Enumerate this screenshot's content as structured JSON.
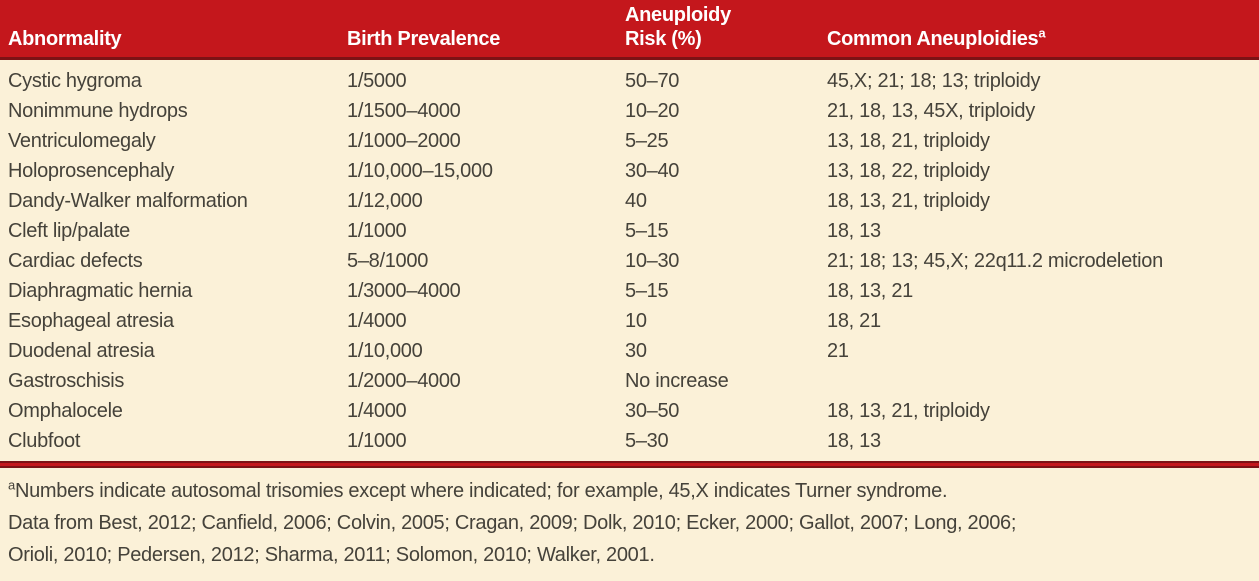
{
  "colors": {
    "header_bg": "#c4171c",
    "rule_dark": "#7d1215",
    "body_bg": "#fbf1d8",
    "body_text": "#45423a",
    "header_text": "#ffffff"
  },
  "header": {
    "col1": "Abnormality",
    "col2": "Birth Prevalence",
    "col3_line1": "Aneuploidy",
    "col3_line2": "Risk (%)",
    "col4": "Common Aneuploidies",
    "col4_superscript": "a"
  },
  "rows": [
    {
      "abnormality": "Cystic hygroma",
      "birth_prevalence": "1/5000",
      "aneuploidy_risk": "50–70",
      "common_aneuploidies": "45,X; 21; 18; 13; triploidy"
    },
    {
      "abnormality": "Nonimmune hydrops",
      "birth_prevalence": "1/1500–4000",
      "aneuploidy_risk": "10–20",
      "common_aneuploidies": "21, 18, 13, 45X, triploidy"
    },
    {
      "abnormality": "Ventriculomegaly",
      "birth_prevalence": "1/1000–2000",
      "aneuploidy_risk": "5–25",
      "common_aneuploidies": "13, 18, 21, triploidy"
    },
    {
      "abnormality": "Holoprosencephaly",
      "birth_prevalence": "1/10,000–15,000",
      "aneuploidy_risk": "30–40",
      "common_aneuploidies": "13, 18, 22, triploidy"
    },
    {
      "abnormality": "Dandy-Walker malformation",
      "birth_prevalence": "1/12,000",
      "aneuploidy_risk": "40",
      "common_aneuploidies": "18, 13, 21, triploidy"
    },
    {
      "abnormality": "Cleft lip/palate",
      "birth_prevalence": "1/1000",
      "aneuploidy_risk": "5–15",
      "common_aneuploidies": "18, 13"
    },
    {
      "abnormality": "Cardiac defects",
      "birth_prevalence": "5–8/1000",
      "aneuploidy_risk": "10–30",
      "common_aneuploidies": "21; 18; 13; 45,X; 22q11.2 microdeletion"
    },
    {
      "abnormality": "Diaphragmatic hernia",
      "birth_prevalence": "1/3000–4000",
      "aneuploidy_risk": "5–15",
      "common_aneuploidies": "18, 13, 21"
    },
    {
      "abnormality": "Esophageal atresia",
      "birth_prevalence": "1/4000",
      "aneuploidy_risk": "10",
      "common_aneuploidies": "18, 21"
    },
    {
      "abnormality": "Duodenal atresia",
      "birth_prevalence": "1/10,000",
      "aneuploidy_risk": "30",
      "common_aneuploidies": "21"
    },
    {
      "abnormality": "Gastroschisis",
      "birth_prevalence": "1/2000–4000",
      "aneuploidy_risk": "No increase",
      "common_aneuploidies": ""
    },
    {
      "abnormality": "Omphalocele",
      "birth_prevalence": "1/4000",
      "aneuploidy_risk": "30–50",
      "common_aneuploidies": "18, 13, 21, triploidy"
    },
    {
      "abnormality": "Clubfoot",
      "birth_prevalence": "1/1000",
      "aneuploidy_risk": "5–30",
      "common_aneuploidies": "18, 13"
    }
  ],
  "footnotes": {
    "marker": "a",
    "note": "Numbers indicate autosomal trisomies except where indicated; for example, 45,X indicates Turner syndrome.",
    "source_line1": "Data from Best, 2012; Canfield, 2006; Colvin, 2005; Cragan, 2009; Dolk, 2010; Ecker, 2000; Gallot, 2007; Long, 2006;",
    "source_line2": "Orioli, 2010; Pedersen, 2012; Sharma, 2011; Solomon, 2010; Walker, 2001."
  }
}
